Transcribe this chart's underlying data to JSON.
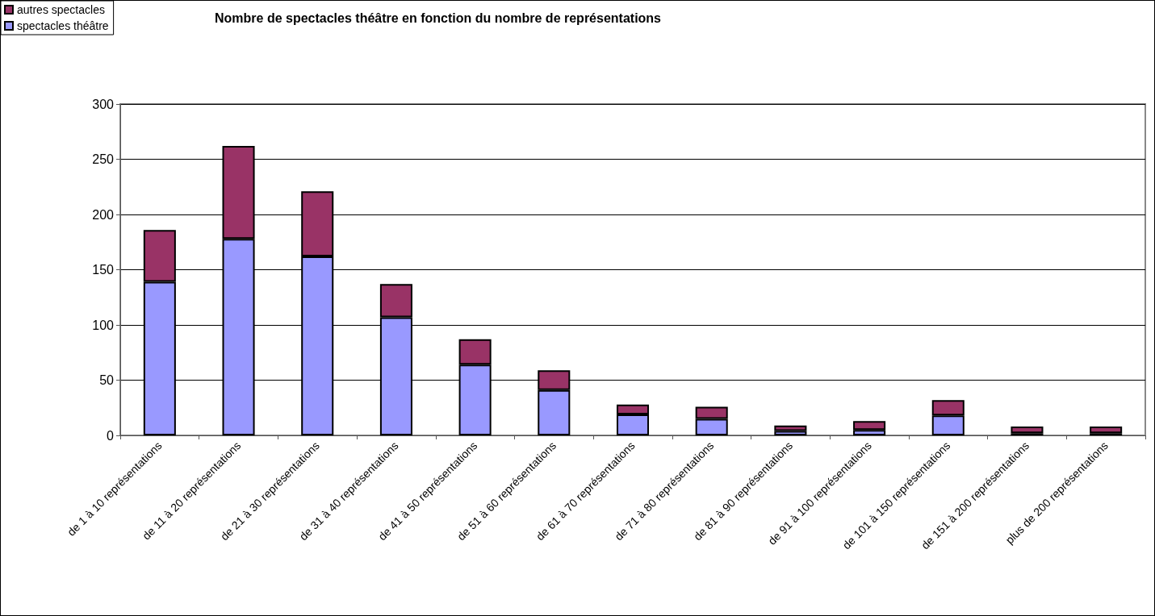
{
  "chart_data": {
    "type": "bar",
    "title": "Nombre de spectacles théâtre en fonction du nombre de représentations",
    "categories": [
      "de 1 à 10 représentations",
      "de 11 à 20 représentations",
      "de 21 à 30 représentations",
      "de 31 à 40 représentations",
      "de 41 à 50 représentations",
      "de 51 à 60 représentations",
      "de 61 à 70 représentations",
      "de 71 à 80 représentations",
      "de 81 à 90 représentations",
      "de 91 à 100 représentations",
      "de 101 à 150 représentations",
      "de 151 à 200 représentations",
      "plus de 200 représentations"
    ],
    "series": [
      {
        "name": "spectacles théâtre",
        "color": "#9999ff",
        "values": [
          139,
          178,
          162,
          107,
          64,
          41,
          19,
          15,
          4,
          5,
          18,
          2,
          2
        ]
      },
      {
        "name": "autres spectacles",
        "color": "#993366",
        "values": [
          47,
          84,
          59,
          30,
          23,
          18,
          9,
          11,
          5,
          8,
          14,
          6,
          6
        ]
      }
    ],
    "stacked": true,
    "ylim": [
      0,
      300
    ],
    "yticks": [
      0,
      50,
      100,
      150,
      200,
      250,
      300
    ],
    "grid": "y",
    "legend": "top left"
  }
}
